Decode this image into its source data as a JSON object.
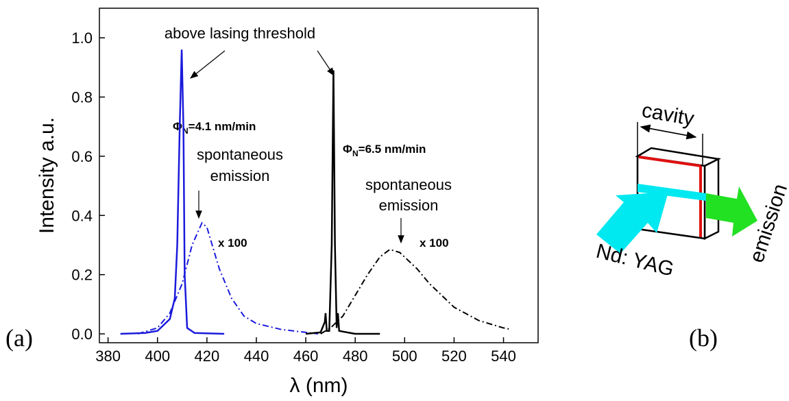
{
  "chart_data": {
    "type": "line",
    "x_label": "λ (nm)",
    "y_label": "Intensity a.u.",
    "xlim": [
      376.5,
      554
    ],
    "ylim": [
      -0.03,
      1.1
    ],
    "xticks": [
      380,
      400,
      420,
      440,
      460,
      480,
      500,
      520,
      540
    ],
    "yticks": [
      {
        "value": 0,
        "label": "0.0"
      },
      0.2,
      0.4,
      0.6,
      0.8,
      {
        "value": 1,
        "label": "1.0"
      }
    ],
    "series": [
      {
        "color": "#1a1adc",
        "style": "solid",
        "x": [
          385,
          395,
          400,
          405,
          407,
          408,
          409,
          409.8,
          410.5,
          411,
          412,
          415,
          427
        ],
        "values": [
          0,
          0.003,
          0.01,
          0.05,
          0.12,
          0.3,
          0.7,
          0.96,
          0.7,
          0.2,
          0.02,
          0.003,
          0
        ]
      },
      {
        "color": "#1a1adc",
        "style": "dashdot",
        "x": [
          392,
          400,
          405,
          410,
          414,
          418,
          420,
          425,
          430,
          435,
          440,
          450,
          460,
          465
        ],
        "values": [
          0,
          0.02,
          0.07,
          0.17,
          0.3,
          0.375,
          0.36,
          0.22,
          0.12,
          0.06,
          0.035,
          0.015,
          0.005,
          0
        ]
      },
      {
        "color": "#000000",
        "style": "solid",
        "x": [
          460,
          466,
          467.7,
          468,
          468.5,
          469.5,
          470.5,
          471.2,
          471.8,
          472.5,
          473,
          473.5,
          480,
          490
        ],
        "values": [
          0,
          0.005,
          0.04,
          0.07,
          0.01,
          0.01,
          0.3,
          0.89,
          0.3,
          0.02,
          0.07,
          0.01,
          0,
          0
        ]
      },
      {
        "color": "#000000",
        "style": "dashdot",
        "x": [
          466,
          470,
          475,
          480,
          485,
          490,
          494,
          498,
          505,
          510,
          520,
          530,
          540,
          543
        ],
        "values": [
          0,
          0.02,
          0.06,
          0.13,
          0.2,
          0.26,
          0.285,
          0.275,
          0.22,
          0.17,
          0.09,
          0.045,
          0.02,
          0.015
        ]
      }
    ],
    "annotations": {
      "threshold": "above lasing threshold",
      "flux1": {
        "symbol": "Φ",
        "subscript": "N",
        "text": "=4.1 nm/min"
      },
      "flux2": {
        "symbol": "Φ",
        "subscript": "N",
        "text": "=6.5 nm/min"
      },
      "spont1": [
        "spontaneous",
        "emission"
      ],
      "spont2": [
        "spontaneous",
        "emission"
      ],
      "scale1": "x 100",
      "scale2": "x 100"
    }
  },
  "panel_labels": [
    "(a)",
    "(b)"
  ],
  "diagram": {
    "cavity": "cavity",
    "crystal": "Nd: YAG",
    "output": "emission"
  }
}
